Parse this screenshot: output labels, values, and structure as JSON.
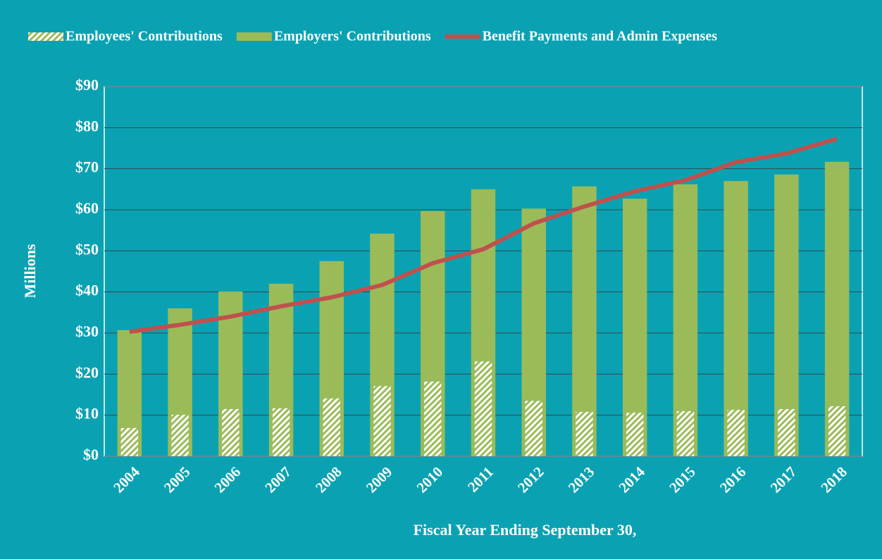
{
  "chart_data": {
    "type": "bar",
    "stacked": true,
    "x_label": "Fiscal Year Ending September 30,",
    "y_label": "Millions",
    "categories": [
      "2004",
      "2005",
      "2006",
      "2007",
      "2008",
      "2009",
      "2010",
      "2011",
      "2012",
      "2013",
      "2014",
      "2015",
      "2016",
      "2017",
      "2018"
    ],
    "series": [
      {
        "name": "Employees' Contributions",
        "color": "#9bbb59",
        "hatch": true,
        "values": [
          6.9,
          10.1,
          11.5,
          11.7,
          14.1,
          17.1,
          18.2,
          23.1,
          13.5,
          10.8,
          10.6,
          11.0,
          11.3,
          11.5,
          12.2
        ]
      },
      {
        "name": "Employers' Contributions",
        "color": "#9bbb59",
        "values": [
          23.8,
          25.9,
          28.6,
          30.3,
          33.4,
          37.1,
          41.5,
          41.9,
          46.8,
          54.9,
          52.1,
          55.2,
          55.7,
          57.1,
          59.5
        ]
      },
      {
        "name": "Benefit Payments and Admin Expenses",
        "color": "#c0504d",
        "type": "line",
        "values": [
          30.3,
          32.0,
          34.0,
          36.5,
          38.7,
          41.7,
          47.0,
          50.4,
          56.7,
          60.8,
          64.5,
          67.2,
          71.6,
          73.7,
          77.3
        ]
      }
    ],
    "ylim": [
      0,
      90
    ],
    "yticks": [
      {
        "value": 0,
        "label": "$0"
      },
      {
        "value": 10,
        "label": "$10"
      },
      {
        "value": 20,
        "label": "$20"
      },
      {
        "value": 30,
        "label": "$30"
      },
      {
        "value": 40,
        "label": "$40"
      },
      {
        "value": 50,
        "label": "$50"
      },
      {
        "value": 60,
        "label": "$60"
      },
      {
        "value": 70,
        "label": "$70"
      },
      {
        "value": 80,
        "label": "$80"
      },
      {
        "value": 90,
        "label": "$90"
      }
    ],
    "grid": true,
    "legend": "top"
  }
}
